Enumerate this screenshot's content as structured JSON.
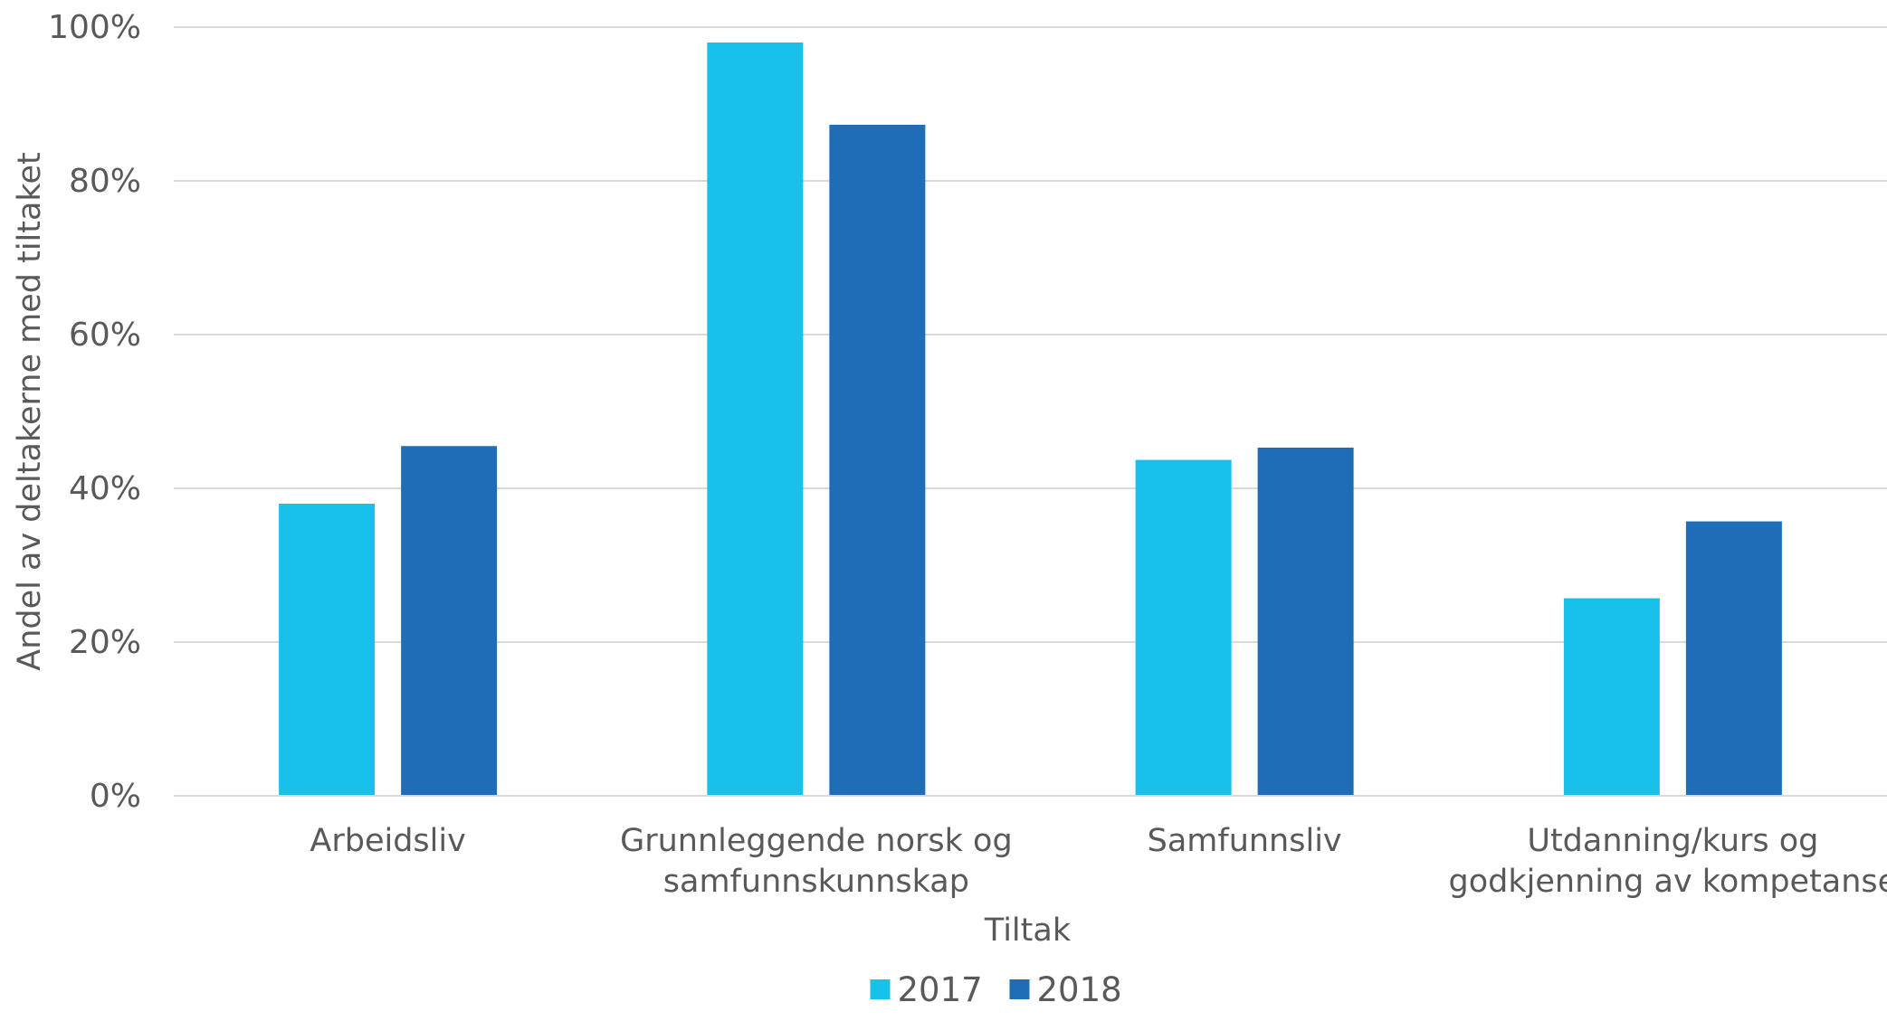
{
  "chart_data": {
    "type": "bar",
    "title": "",
    "xlabel": "Tiltak",
    "ylabel": "Andel av deltakerne med tiltaket",
    "categories": [
      [
        "Arbeidsliv"
      ],
      [
        "Grunnleggende norsk og",
        "samfunnskunnskap"
      ],
      [
        "Samfunnsliv"
      ],
      [
        "Utdanning/kurs og",
        "godkjenning av kompetanse"
      ]
    ],
    "series": [
      {
        "name": "2017",
        "color": "#17C1EA",
        "values": [
          38,
          98,
          43.7,
          25.7
        ]
      },
      {
        "name": "2018",
        "color": "#1E6DB6",
        "values": [
          45.5,
          87.3,
          45.3,
          35.7
        ]
      }
    ],
    "ylim": [
      0,
      100
    ],
    "yticks": [
      "0%",
      "20%",
      "40%",
      "60%",
      "80%",
      "100%"
    ],
    "grid": true,
    "legend": "bottom-center"
  }
}
